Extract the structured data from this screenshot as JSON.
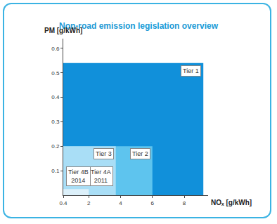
{
  "chart_data": {
    "type": "nested_rect",
    "title": "Non-road emission legislation overview",
    "x_label": "NOₓ [g/kWh]",
    "y_label": "PM [g/kWh]",
    "xlim": [
      0.4,
      9.5
    ],
    "ylim": [
      0,
      0.64
    ],
    "xticks": [
      0.4,
      2,
      4,
      6,
      8
    ],
    "yticks": [
      0.1,
      0.2,
      0.3,
      0.4,
      0.5,
      0.6
    ],
    "grid": false,
    "series": [
      {
        "name": "Tier 1",
        "color": "#1190da",
        "nox": 9.2,
        "pm": 0.54
      },
      {
        "name": "Tier 2",
        "color": "#5ec4ee",
        "nox": 6,
        "pm": 0.2
      },
      {
        "name": "Tier 3",
        "color": "#a9def6",
        "nox": 3.7,
        "pm": 0.2
      },
      {
        "name": "Tier 4A",
        "year": "2011",
        "color": "#dcf0fa",
        "nox": 2,
        "pm": 0.025
      },
      {
        "name": "Tier 4B",
        "year": "2014",
        "color": "#eef8fd",
        "nox": 0.4,
        "pm": 0.025
      }
    ]
  }
}
